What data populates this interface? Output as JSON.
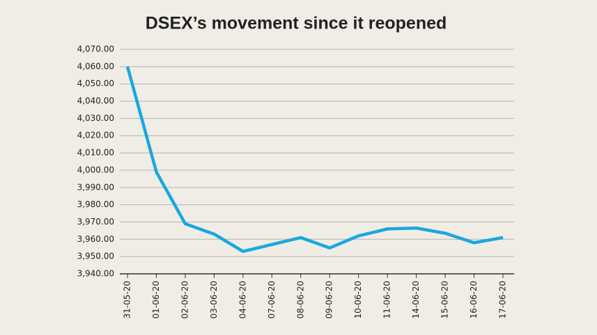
{
  "chart_data": {
    "type": "line",
    "title": "DSEX’s movement since it reopened",
    "categories": [
      "31-05-20",
      "01-06-20",
      "02-06-20",
      "03-06-20",
      "04-06-20",
      "07-06-20",
      "08-06-20",
      "09-06-20",
      "10-06-20",
      "11-06-20",
      "14-06-20",
      "15-06-20",
      "16-06-20",
      "17-06-20"
    ],
    "values": [
      4060,
      3999,
      3969,
      3963,
      3953,
      3957,
      3961,
      3955,
      3962,
      3966,
      3966.5,
      3963.5,
      3958,
      3961
    ],
    "color": "#1aa7e0",
    "ylim": [
      3940,
      4070
    ],
    "yticks": [
      {
        "value": 3940,
        "label": "3,940.00"
      },
      {
        "value": 3950,
        "label": "3,950.00"
      },
      {
        "value": 3960,
        "label": "3,960.00"
      },
      {
        "value": 3970,
        "label": "3,970.00"
      },
      {
        "value": 3980,
        "label": "3,980.00"
      },
      {
        "value": 3990,
        "label": "3,990.00"
      },
      {
        "value": 4000,
        "label": "4,000.00"
      },
      {
        "value": 4010,
        "label": "4,010.00"
      },
      {
        "value": 4020,
        "label": "4,020.00"
      },
      {
        "value": 4030,
        "label": "4,030.00"
      },
      {
        "value": 4040,
        "label": "4,040.00"
      },
      {
        "value": 4050,
        "label": "4,050.00"
      },
      {
        "value": 4060,
        "label": "4,060.00"
      },
      {
        "value": 4070,
        "label": "4,070.00"
      }
    ],
    "grid": true
  }
}
